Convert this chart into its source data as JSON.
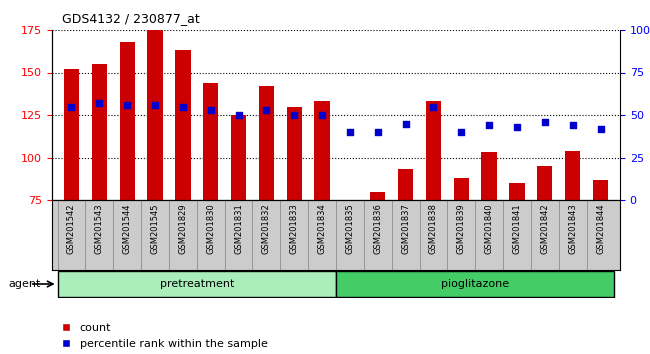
{
  "title": "GDS4132 / 230877_at",
  "samples": [
    "GSM201542",
    "GSM201543",
    "GSM201544",
    "GSM201545",
    "GSM201829",
    "GSM201830",
    "GSM201831",
    "GSM201832",
    "GSM201833",
    "GSM201834",
    "GSM201835",
    "GSM201836",
    "GSM201837",
    "GSM201838",
    "GSM201839",
    "GSM201840",
    "GSM201841",
    "GSM201842",
    "GSM201843",
    "GSM201844"
  ],
  "counts": [
    152,
    155,
    168,
    175,
    163,
    144,
    125,
    142,
    130,
    133,
    75,
    80,
    93,
    133,
    88,
    103,
    85,
    95,
    104,
    87
  ],
  "percentile_ranks": [
    55,
    57,
    56,
    56,
    55,
    53,
    50,
    53,
    50,
    50,
    40,
    40,
    45,
    55,
    40,
    44,
    43,
    46,
    44,
    42
  ],
  "bar_color": "#cc0000",
  "dot_color": "#0000cc",
  "ylim_left": [
    75,
    175
  ],
  "ylim_right": [
    0,
    100
  ],
  "yticks_left": [
    75,
    100,
    125,
    150,
    175
  ],
  "yticks_right": [
    0,
    25,
    50,
    75,
    100
  ],
  "ytick_right_labels": [
    "0",
    "25",
    "50",
    "75",
    "100%"
  ],
  "grid_values": [
    100,
    125,
    150,
    175
  ],
  "num_pretreatment": 10,
  "num_pioglitazone": 10,
  "pretreatment_color": "#aaeebb",
  "pioglitazone_color": "#44cc66",
  "agent_label": "agent",
  "pretreatment_label": "pretreatment",
  "pioglitazone_label": "pioglitazone",
  "legend_count_label": "count",
  "legend_pct_label": "percentile rank within the sample",
  "bar_width": 0.55,
  "plot_bg_color": "#ffffff",
  "label_bg_color": "#cccccc"
}
